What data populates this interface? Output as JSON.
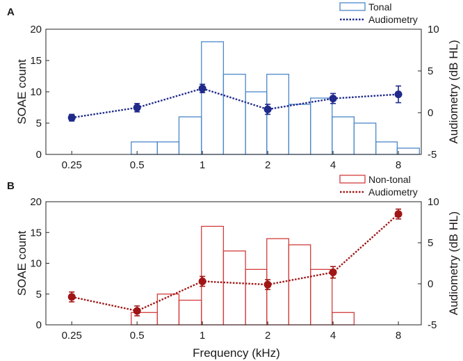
{
  "figure": {
    "xlabel": "Frequency (kHz)"
  },
  "chart_data": [
    {
      "panel_label": "A",
      "type": "bar",
      "hist_color": "#4a86c8",
      "line_color": "#1f2a8a",
      "ylabel_left": "SOAE count",
      "ylabel_right": "Audiometry (dB HL)",
      "ylim_left": [
        0,
        20
      ],
      "ylim_right": [
        -5,
        10
      ],
      "yticks_left": [
        "0",
        "5",
        "10",
        "15",
        "20"
      ],
      "yticks_right": [
        "-5",
        "0",
        "5",
        "10"
      ],
      "xticks": [
        "0.25",
        "0.5",
        "1",
        "2",
        "4",
        "8"
      ],
      "x_scale": "log2 (kHz)",
      "legend": {
        "hist_label": "Tonal",
        "line_label": "Audiometry",
        "position": "top-right"
      },
      "histogram": {
        "bin_edges_khz": [
          0.47,
          0.62,
          0.78,
          0.99,
          1.25,
          1.58,
          1.98,
          2.5,
          3.15,
          3.96,
          5.0,
          6.3,
          7.9,
          10.0
        ],
        "counts": [
          2,
          2,
          6,
          18,
          12.8,
          10,
          12.8,
          8,
          9,
          6,
          5,
          2,
          1
        ]
      },
      "audiometry": {
        "x_khz": [
          0.25,
          0.5,
          1,
          2,
          4,
          8
        ],
        "y": [
          -0.6,
          0.6,
          2.9,
          0.4,
          1.7,
          2.2
        ],
        "err": [
          0.4,
          0.5,
          0.5,
          0.6,
          0.6,
          1.0
        ]
      }
    },
    {
      "panel_label": "B",
      "type": "bar",
      "hist_color": "#d23c3c",
      "line_color": "#a01616",
      "ylabel_left": "SOAE count",
      "ylabel_right": "Audiometry (dB HL)",
      "ylim_left": [
        0,
        20
      ],
      "ylim_right": [
        -5,
        10
      ],
      "yticks_left": [
        "0",
        "5",
        "10",
        "15",
        "20"
      ],
      "yticks_right": [
        "-5",
        "0",
        "5",
        "10"
      ],
      "xticks": [
        "0.25",
        "0.5",
        "1",
        "2",
        "4",
        "8"
      ],
      "x_scale": "log2 (kHz)",
      "legend": {
        "hist_label": "Non-tonal",
        "line_label": "Audiometry",
        "position": "top-right"
      },
      "histogram": {
        "bin_edges_khz": [
          0.47,
          0.62,
          0.78,
          0.99,
          1.25,
          1.58,
          1.98,
          2.5,
          3.15,
          3.96,
          5.0
        ],
        "counts": [
          2,
          5,
          4,
          16,
          12,
          9,
          14,
          13,
          9,
          2
        ]
      },
      "audiometry": {
        "x_khz": [
          0.25,
          0.5,
          1,
          2,
          4,
          8
        ],
        "y": [
          -1.6,
          -3.3,
          0.3,
          -0.1,
          1.4,
          8.5
        ],
        "err": [
          0.6,
          0.6,
          0.6,
          0.6,
          0.7,
          0.6
        ]
      }
    }
  ]
}
